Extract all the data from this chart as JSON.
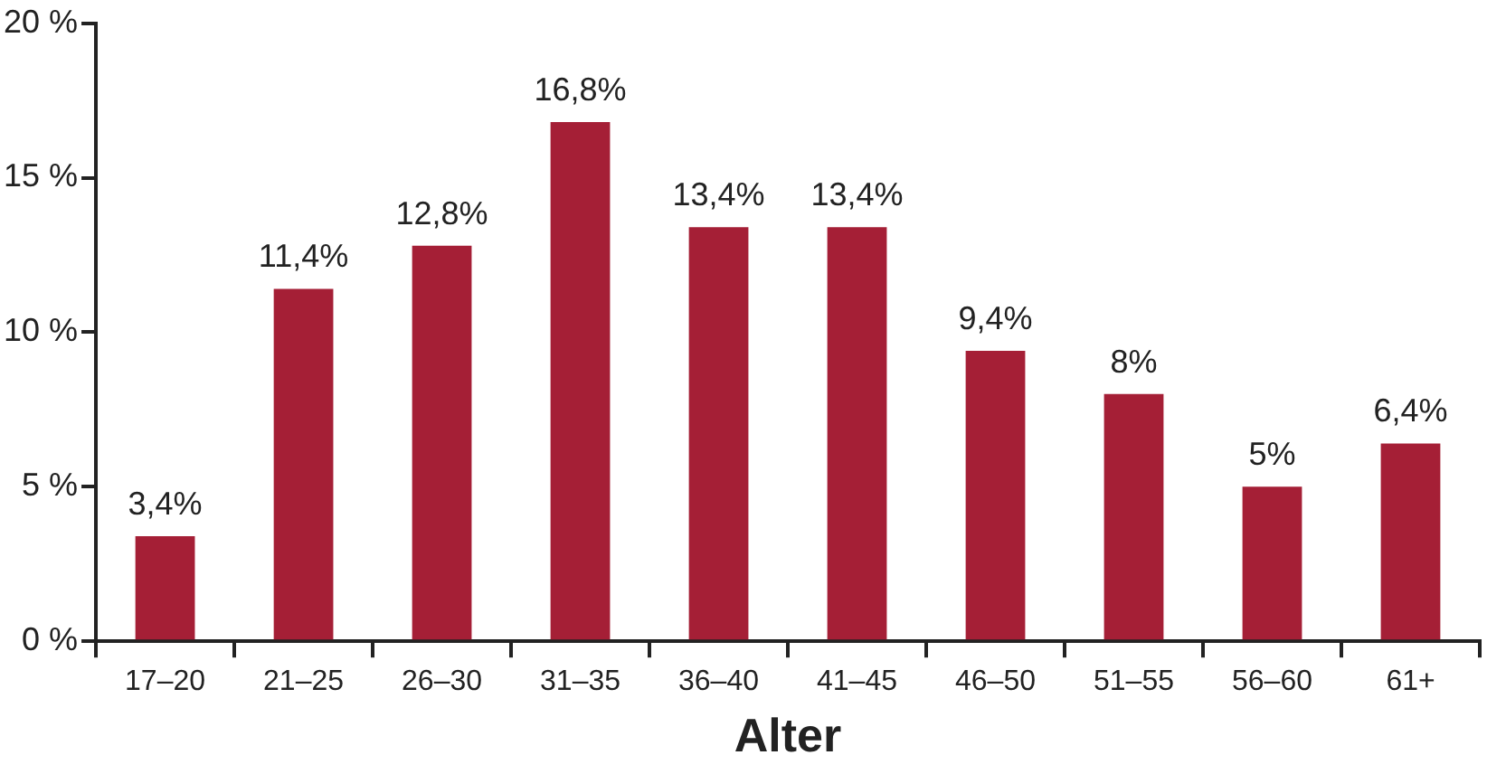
{
  "chart_data": {
    "type": "bar",
    "xlabel": "Alter",
    "categories": [
      "17–20",
      "21–25",
      "26–30",
      "31–35",
      "36–40",
      "41–45",
      "46–50",
      "51–55",
      "56–60",
      "61+"
    ],
    "values": [
      3.4,
      11.4,
      12.8,
      16.8,
      13.4,
      13.4,
      9.4,
      8,
      5,
      6.4
    ],
    "value_labels": [
      "3,4%",
      "11,4%",
      "12,8%",
      "16,8%",
      "13,4%",
      "13,4%",
      "9,4%",
      "8%",
      "5%",
      "6,4%"
    ],
    "color": "#a51f36",
    "ylim": [
      0,
      20
    ],
    "yticks": [
      {
        "value": 0,
        "label": "0 %"
      },
      {
        "value": 5,
        "label": "5 %"
      },
      {
        "value": 10,
        "label": "10 %"
      },
      {
        "value": 15,
        "label": "15 %"
      },
      {
        "value": 20,
        "label": "20 %"
      }
    ],
    "grid": false,
    "legend": false
  }
}
